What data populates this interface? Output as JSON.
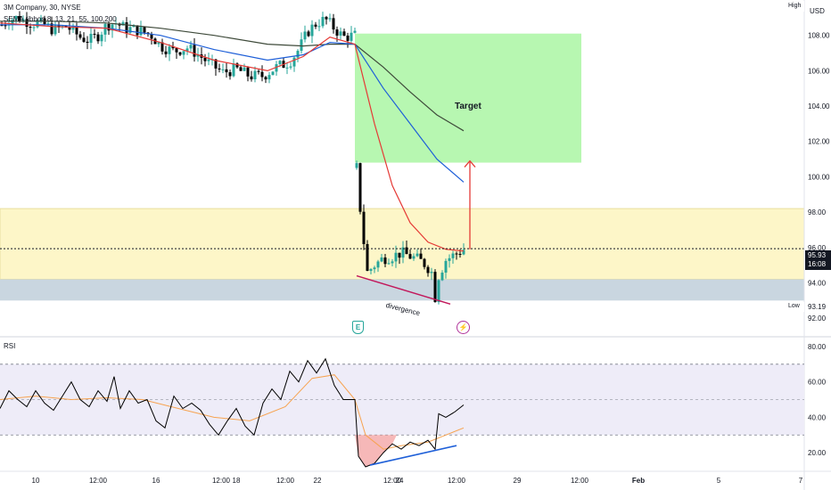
{
  "header": {
    "symbol_line": "3M Company, 30, NYSE",
    "indicator_line": "SEMA ribbon 8, 13, 21, 55, 100,200",
    "rsi_label": "RSI"
  },
  "price_scale": {
    "currency": "USD",
    "high_label": "High",
    "low_label": "Low",
    "low_value": "93.19",
    "current_price": "95.93",
    "countdown": "16:08"
  },
  "colors": {
    "bull": "#26a69a",
    "bear": "#000000",
    "ema_fast": "#e53935",
    "ema_mid": "#1e5fd8",
    "ema_slow": "#3e4a3a",
    "target_zone": "#b7f7b1",
    "supply_zone": "#fdf6c8",
    "support_zone": "#c9d6e0",
    "rsi_line": "#000000",
    "rsi_ma": "#f7a350",
    "rsi_band": "#eeecf8",
    "divergence_price": "#c2185b",
    "divergence_rsi": "#1e5fd8",
    "arrow": "#e53935"
  },
  "annotations": {
    "target_label": "Target",
    "divergence_label": "divergence",
    "earnings_marker": "E",
    "dividend_marker": "⚡"
  },
  "chart_data": [
    {
      "type": "candlestick",
      "title": "3M Company, 30, NYSE",
      "ylim": [
        91,
        110
      ],
      "yticks": [
        92,
        94,
        96,
        98,
        100,
        102,
        104,
        106,
        108
      ],
      "ytick_labels": [
        "92.00",
        "94.00",
        "96.00",
        "98.00",
        "100.00",
        "102.00",
        "104.00",
        "106.00",
        "108.00"
      ],
      "xtick_labels": [
        "10",
        "12:00",
        "16",
        "12:00",
        "18",
        "12:00",
        "22",
        "12:00",
        "24",
        "12:00",
        "29",
        "12:00",
        "Feb",
        "5",
        "7"
      ],
      "price_path": [
        [
          0,
          108.5
        ],
        [
          10,
          108.9
        ],
        [
          20,
          109.0
        ],
        [
          35,
          108.7
        ],
        [
          50,
          108.6
        ],
        [
          60,
          108.3
        ],
        [
          75,
          108.5
        ],
        [
          90,
          107.9
        ],
        [
          100,
          107.7
        ],
        [
          110,
          108.0
        ],
        [
          120,
          108.6
        ],
        [
          130,
          108.7
        ],
        [
          140,
          108.4
        ],
        [
          155,
          108.3
        ],
        [
          170,
          108.0
        ],
        [
          180,
          107.4
        ],
        [
          195,
          107.1
        ],
        [
          210,
          107.3
        ],
        [
          220,
          107.0
        ],
        [
          235,
          106.4
        ],
        [
          250,
          105.9
        ],
        [
          265,
          106.1
        ],
        [
          280,
          105.7
        ],
        [
          295,
          105.7
        ],
        [
          310,
          106.2
        ],
        [
          325,
          106.5
        ],
        [
          335,
          107.2
        ],
        [
          345,
          108.2
        ],
        [
          355,
          108.7
        ],
        [
          365,
          108.9
        ],
        [
          375,
          108.4
        ],
        [
          385,
          107.9
        ],
        [
          398,
          108.0
        ]
      ],
      "drop_path": [
        [
          400,
          100.5
        ],
        [
          404,
          98.2
        ],
        [
          408,
          96.3
        ],
        [
          412,
          94.6
        ],
        [
          420,
          95.0
        ],
        [
          430,
          95.4
        ],
        [
          440,
          95.5
        ],
        [
          450,
          95.7
        ],
        [
          460,
          95.5
        ],
        [
          470,
          95.3
        ],
        [
          478,
          95.0
        ],
        [
          484,
          94.6
        ],
        [
          488,
          93.2
        ],
        [
          492,
          94.4
        ],
        [
          500,
          95.3
        ],
        [
          510,
          95.6
        ],
        [
          520,
          95.9
        ]
      ],
      "ema_fast": [
        [
          0,
          108.7
        ],
        [
          60,
          108.5
        ],
        [
          120,
          108.4
        ],
        [
          180,
          107.6
        ],
        [
          240,
          106.6
        ],
        [
          300,
          106.0
        ],
        [
          340,
          106.8
        ],
        [
          370,
          107.9
        ],
        [
          398,
          107.5
        ],
        [
          420,
          103.0
        ],
        [
          440,
          99.5
        ],
        [
          460,
          97.4
        ],
        [
          480,
          96.3
        ],
        [
          500,
          95.9
        ],
        [
          520,
          95.8
        ]
      ],
      "ema_mid": [
        [
          0,
          108.6
        ],
        [
          60,
          108.6
        ],
        [
          120,
          108.4
        ],
        [
          180,
          108.0
        ],
        [
          240,
          107.2
        ],
        [
          300,
          106.6
        ],
        [
          340,
          106.9
        ],
        [
          370,
          107.6
        ],
        [
          398,
          107.5
        ],
        [
          430,
          105.0
        ],
        [
          460,
          103.0
        ],
        [
          490,
          101.0
        ],
        [
          520,
          99.7
        ]
      ],
      "ema_slow": [
        [
          0,
          108.8
        ],
        [
          60,
          108.8
        ],
        [
          120,
          108.7
        ],
        [
          180,
          108.4
        ],
        [
          240,
          108.0
        ],
        [
          300,
          107.5
        ],
        [
          340,
          107.4
        ],
        [
          370,
          107.5
        ],
        [
          398,
          107.5
        ],
        [
          430,
          106.2
        ],
        [
          460,
          104.8
        ],
        [
          490,
          103.5
        ],
        [
          520,
          102.6
        ]
      ],
      "target_zone": {
        "x_from": 398,
        "x_to": 652,
        "y_from": 100.8,
        "y_to": 108.1
      },
      "supply_zone": {
        "y_from": 94.2,
        "y_to": 98.2
      },
      "support_zone": {
        "y_from": 93.0,
        "y_to": 94.2
      },
      "current_price": 95.93,
      "low": 93.19
    },
    {
      "type": "line",
      "title": "RSI",
      "ylim": [
        10,
        85
      ],
      "yticks": [
        20,
        40,
        60,
        80
      ],
      "ytick_labels": [
        "20.00",
        "40.00",
        "60.00",
        "80.00"
      ],
      "band": [
        30,
        70
      ],
      "midline": 50,
      "rsi": [
        [
          0,
          45
        ],
        [
          10,
          55
        ],
        [
          20,
          50
        ],
        [
          30,
          46
        ],
        [
          40,
          55
        ],
        [
          50,
          48
        ],
        [
          60,
          44
        ],
        [
          70,
          52
        ],
        [
          80,
          60
        ],
        [
          90,
          50
        ],
        [
          100,
          46
        ],
        [
          110,
          55
        ],
        [
          120,
          49
        ],
        [
          128,
          63
        ],
        [
          135,
          45
        ],
        [
          145,
          55
        ],
        [
          155,
          48
        ],
        [
          165,
          50
        ],
        [
          175,
          38
        ],
        [
          185,
          34
        ],
        [
          195,
          52
        ],
        [
          205,
          45
        ],
        [
          215,
          48
        ],
        [
          225,
          44
        ],
        [
          235,
          36
        ],
        [
          245,
          30
        ],
        [
          255,
          38
        ],
        [
          265,
          45
        ],
        [
          275,
          35
        ],
        [
          285,
          30
        ],
        [
          295,
          48
        ],
        [
          305,
          56
        ],
        [
          315,
          50
        ],
        [
          325,
          66
        ],
        [
          335,
          60
        ],
        [
          345,
          72
        ],
        [
          355,
          65
        ],
        [
          365,
          73
        ],
        [
          375,
          58
        ],
        [
          385,
          50
        ],
        [
          398,
          50
        ],
        [
          402,
          18
        ],
        [
          410,
          12
        ],
        [
          420,
          14
        ],
        [
          430,
          20
        ],
        [
          440,
          25
        ],
        [
          450,
          22
        ],
        [
          460,
          26
        ],
        [
          470,
          24
        ],
        [
          480,
          27
        ],
        [
          488,
          22
        ],
        [
          492,
          42
        ],
        [
          500,
          40
        ],
        [
          510,
          43
        ],
        [
          520,
          47
        ]
      ],
      "rsi_ma": [
        [
          0,
          50
        ],
        [
          40,
          52
        ],
        [
          80,
          50
        ],
        [
          120,
          51
        ],
        [
          160,
          50
        ],
        [
          200,
          45
        ],
        [
          240,
          40
        ],
        [
          280,
          38
        ],
        [
          320,
          46
        ],
        [
          350,
          62
        ],
        [
          375,
          64
        ],
        [
          398,
          50
        ],
        [
          410,
          30
        ],
        [
          430,
          22
        ],
        [
          450,
          24
        ],
        [
          480,
          26
        ],
        [
          500,
          30
        ],
        [
          520,
          34
        ]
      ]
    }
  ]
}
